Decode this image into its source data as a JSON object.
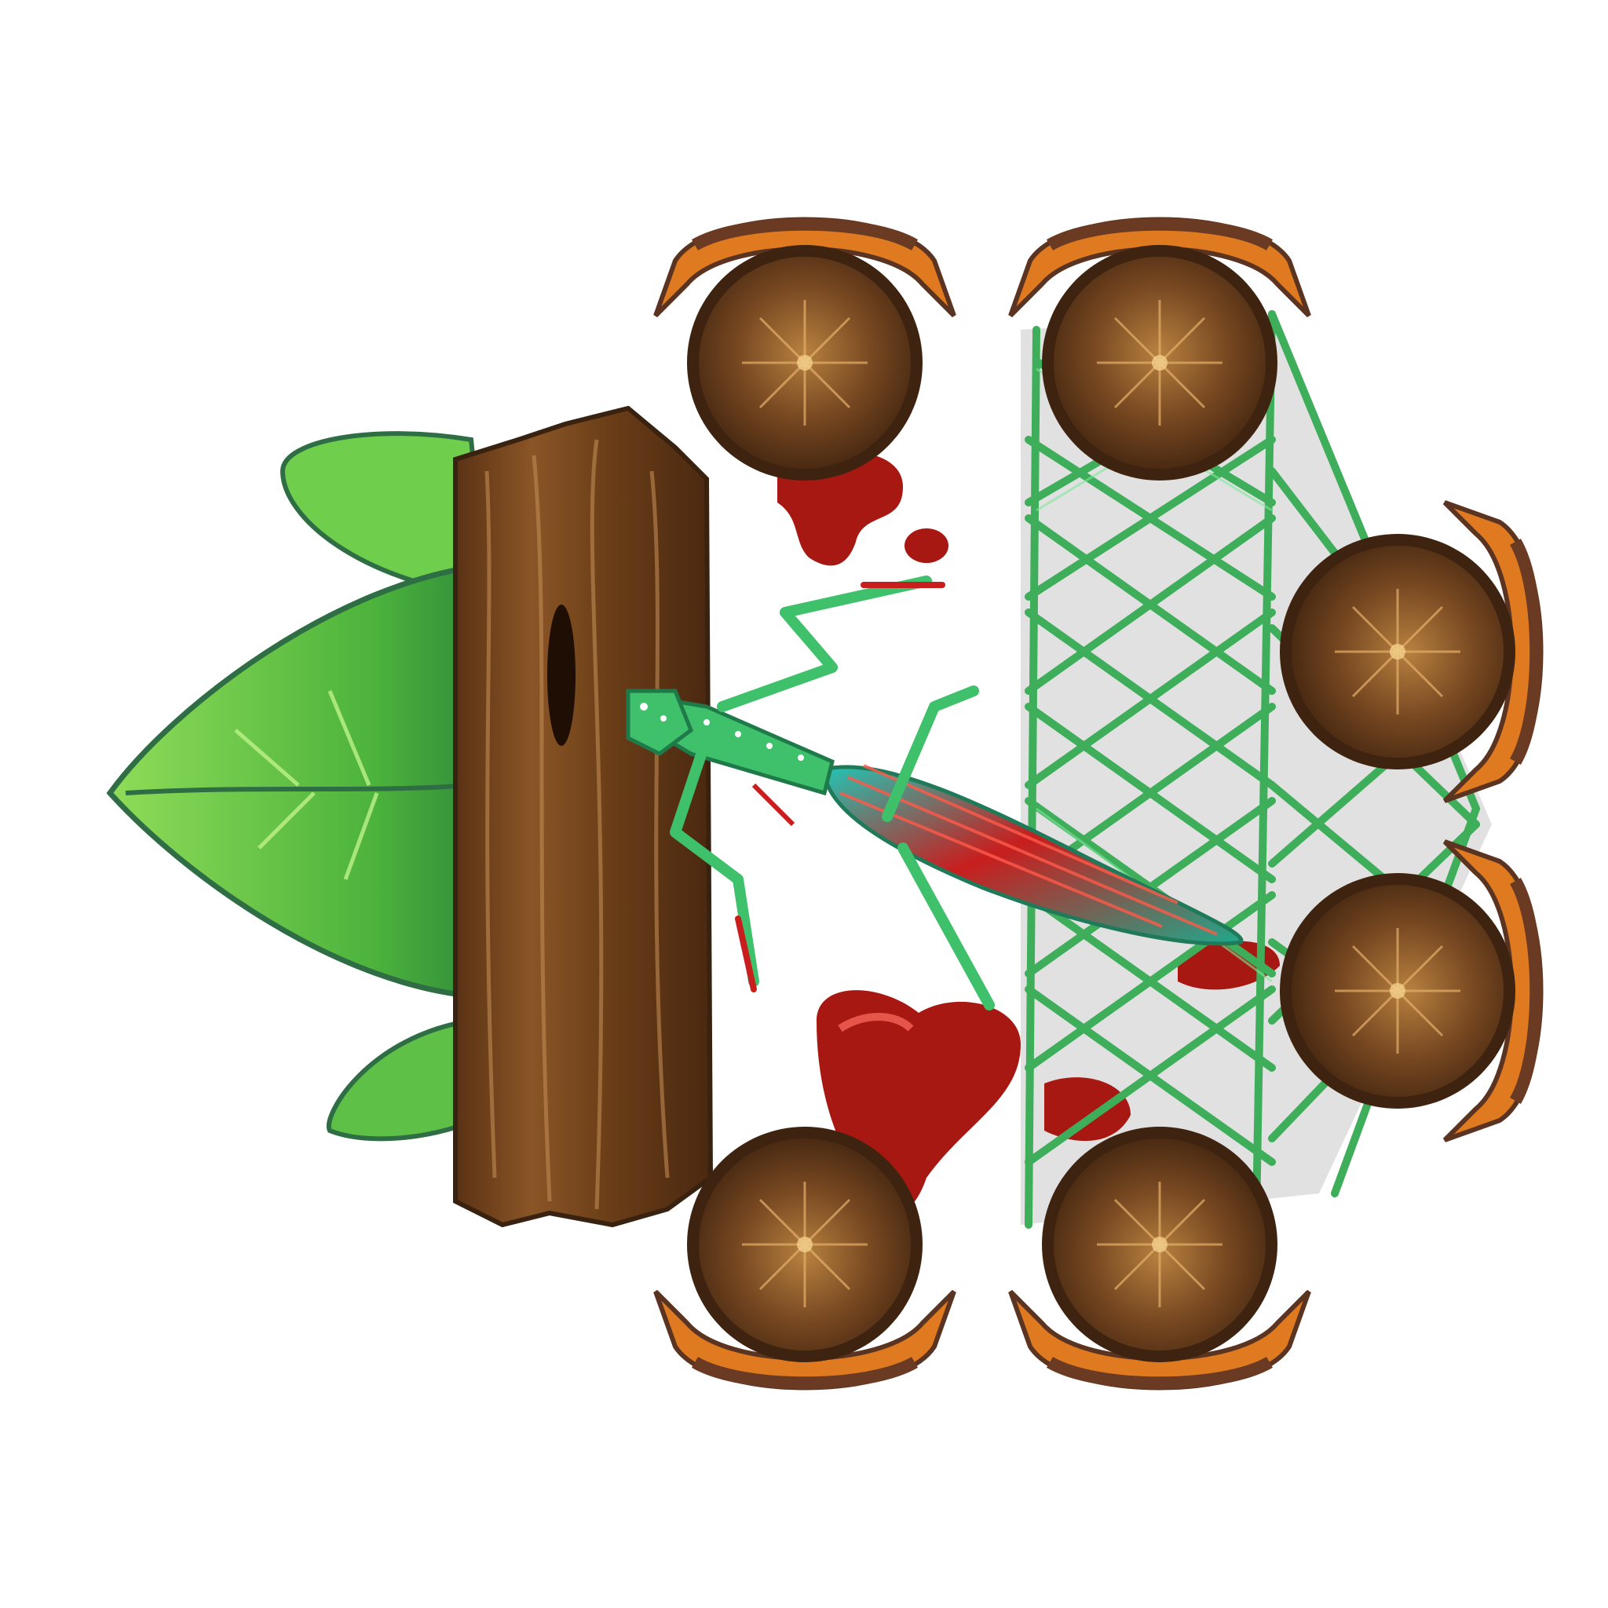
{
  "scene": {
    "background": "#ffffff",
    "elements": {
      "leaf_cluster": {
        "count": 3,
        "colors": {
          "light": "#7fd14e",
          "mid": "#4fb83e",
          "dark": "#2f8a3a",
          "vein": "#2f6e45"
        }
      },
      "tree_trunk": {
        "colors": {
          "bark": "#7a4a20",
          "bark_dark": "#4a2810",
          "bark_light": "#a5703a"
        }
      },
      "seats": {
        "count": 6,
        "colors": {
          "cushion": "#6b3f1c",
          "cushion_light": "#a06a32",
          "rim": "#e07a20",
          "rim_dark": "#6a3a22"
        }
      },
      "rope_net": {
        "colors": {
          "rope": "#3fae5a",
          "rope_light": "#6fdc80",
          "shadow": "#c8c8c8"
        }
      },
      "mantis": {
        "colors": {
          "body": "#3fc06a",
          "body_light": "#7be89a",
          "wing_red": "#c81e1e",
          "wing_teal": "#22b8a8",
          "spot": "#ffffff"
        }
      },
      "red_puddles": {
        "count": 5,
        "colors": {
          "fill": "#a81812",
          "highlight": "#e6544a"
        }
      }
    }
  }
}
